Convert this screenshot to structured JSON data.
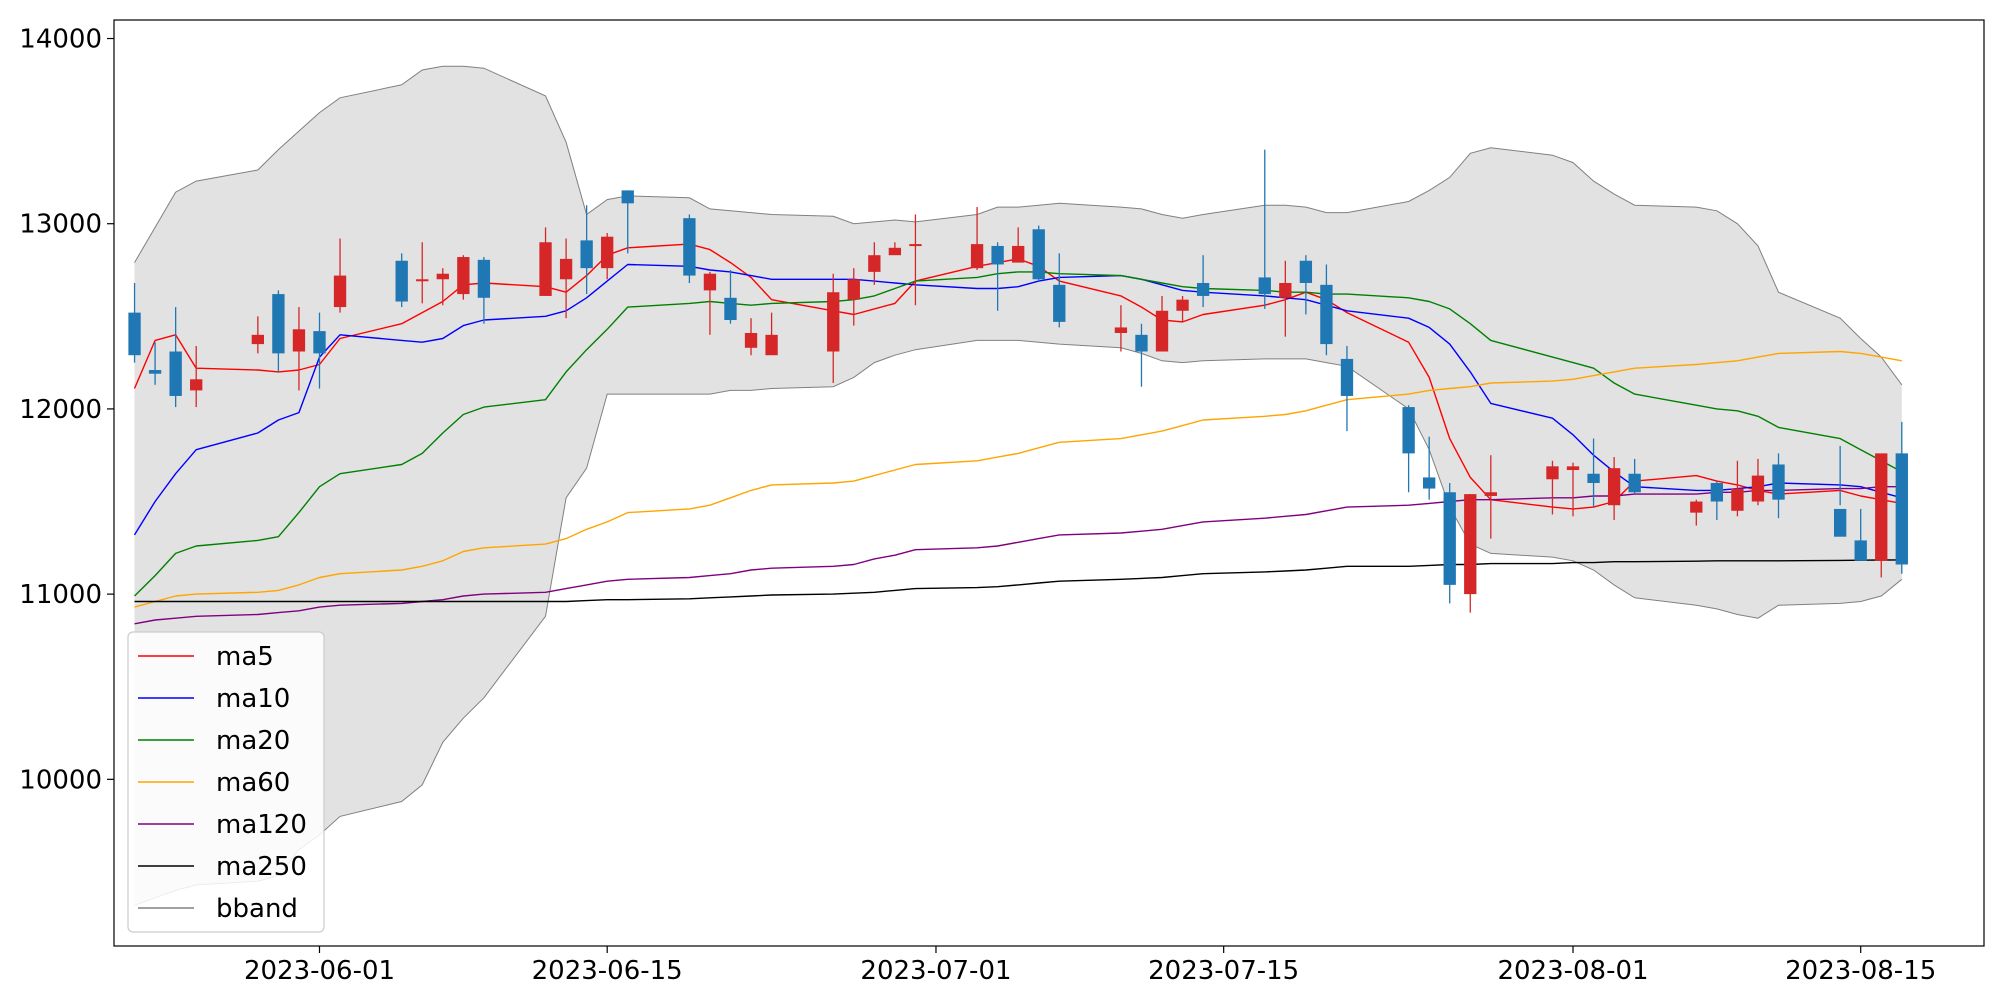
{
  "chart_data": {
    "type": "candlestick",
    "title": "",
    "xlabel": "",
    "ylabel": "",
    "x_range": [
      "2023-05-22",
      "2023-08-21"
    ],
    "ylim": [
      9100,
      14100
    ],
    "yticks": [
      10000,
      11000,
      12000,
      13000,
      14000
    ],
    "yticklabels": [
      "10000",
      "11000",
      "12000",
      "13000",
      "14000"
    ],
    "xticks": [
      "2023-06-01",
      "2023-06-15",
      "2023-07-01",
      "2023-07-15",
      "2023-08-01",
      "2023-08-15"
    ],
    "xticklabels": [
      "2023-06-01",
      "2023-06-15",
      "2023-07-01",
      "2023-07-15",
      "2023-08-01",
      "2023-08-15"
    ],
    "grid": false,
    "legend_position": "lower-left",
    "up_color": "#d62728",
    "down_color": "#1f77b4",
    "dates": [
      "2023-05-23",
      "2023-05-24",
      "2023-05-25",
      "2023-05-26",
      "2023-05-29",
      "2023-05-30",
      "2023-05-31",
      "2023-06-01",
      "2023-06-02",
      "2023-06-05",
      "2023-06-06",
      "2023-06-07",
      "2023-06-08",
      "2023-06-09",
      "2023-06-12",
      "2023-06-13",
      "2023-06-14",
      "2023-06-15",
      "2023-06-16",
      "2023-06-19",
      "2023-06-20",
      "2023-06-21",
      "2023-06-22",
      "2023-06-23",
      "2023-06-26",
      "2023-06-27",
      "2023-06-28",
      "2023-06-29",
      "2023-06-30",
      "2023-07-03",
      "2023-07-04",
      "2023-07-05",
      "2023-07-06",
      "2023-07-07",
      "2023-07-10",
      "2023-07-11",
      "2023-07-12",
      "2023-07-13",
      "2023-07-14",
      "2023-07-17",
      "2023-07-18",
      "2023-07-19",
      "2023-07-20",
      "2023-07-21",
      "2023-07-24",
      "2023-07-25",
      "2023-07-26",
      "2023-07-27",
      "2023-07-28",
      "2023-07-31",
      "2023-08-01",
      "2023-08-02",
      "2023-08-03",
      "2023-08-04",
      "2023-08-07",
      "2023-08-08",
      "2023-08-09",
      "2023-08-10",
      "2023-08-11",
      "2023-08-14",
      "2023-08-15",
      "2023-08-16",
      "2023-08-17"
    ],
    "candles": {
      "open": [
        12520,
        12210,
        12310,
        12100,
        12350,
        12620,
        12310,
        12420,
        12550,
        12800,
        12690,
        12700,
        12620,
        12805,
        12610,
        12700,
        12910,
        12760,
        13180,
        13030,
        12640,
        12600,
        12330,
        12290,
        12310,
        12590,
        12740,
        12830,
        12880,
        12760,
        12880,
        12790,
        12970,
        12670,
        12410,
        12400,
        12310,
        12530,
        12680,
        12710,
        12600,
        12800,
        12670,
        12270,
        12010,
        11630,
        11550,
        11000,
        11530,
        11620,
        11670,
        11650,
        11480,
        11650,
        11440,
        11600,
        11450,
        11500,
        11700,
        11460,
        11290,
        11180,
        11760
      ],
      "close": [
        12290,
        12190,
        12070,
        12160,
        12400,
        12300,
        12430,
        12300,
        12720,
        12580,
        12700,
        12730,
        12820,
        12600,
        12900,
        12810,
        12760,
        12930,
        13110,
        12720,
        12730,
        12480,
        12410,
        12400,
        12630,
        12700,
        12830,
        12870,
        12890,
        12890,
        12780,
        12880,
        12700,
        12470,
        12440,
        12310,
        12530,
        12590,
        12610,
        12620,
        12680,
        12680,
        12350,
        12070,
        11760,
        11570,
        11050,
        11540,
        11550,
        11690,
        11690,
        11600,
        11680,
        11550,
        11500,
        11500,
        11570,
        11640,
        11510,
        11310,
        11180,
        11760,
        11160
      ],
      "high": [
        12680,
        12360,
        12550,
        12340,
        12500,
        12640,
        12550,
        12520,
        12920,
        12840,
        12900,
        12760,
        12830,
        12820,
        12980,
        12920,
        13100,
        12950,
        13180,
        13050,
        12740,
        12750,
        12490,
        12520,
        12730,
        12760,
        12900,
        12900,
        13050,
        13090,
        12900,
        12980,
        12990,
        12840,
        12560,
        12460,
        12610,
        12610,
        12830,
        13400,
        12800,
        12830,
        12780,
        12340,
        12020,
        11850,
        11600,
        11540,
        11750,
        11720,
        11710,
        11840,
        11740,
        11730,
        11510,
        11610,
        11720,
        11730,
        11760,
        11800,
        11460,
        11380,
        11930
      ],
      "low": [
        12250,
        12130,
        12010,
        12010,
        12300,
        12200,
        12100,
        12110,
        12520,
        12550,
        12570,
        12560,
        12590,
        12460,
        12610,
        12490,
        12620,
        12700,
        12840,
        12680,
        12400,
        12460,
        12290,
        12300,
        12140,
        12450,
        12670,
        12860,
        12560,
        12750,
        12530,
        12820,
        12690,
        12440,
        12310,
        12120,
        12310,
        12470,
        12550,
        12540,
        12390,
        12510,
        12290,
        11880,
        11550,
        11510,
        10950,
        10900,
        11300,
        11430,
        11420,
        11470,
        11400,
        11540,
        11370,
        11400,
        11420,
        11480,
        11410,
        11480,
        11230,
        11090,
        11110
      ]
    },
    "series": [
      {
        "name": "ma5",
        "color": "#ff0000",
        "values": [
          12110,
          12370,
          12400,
          12220,
          12210,
          12200,
          12210,
          12240,
          12380,
          12460,
          12520,
          12580,
          12670,
          12680,
          12660,
          12630,
          12720,
          12830,
          12870,
          12890,
          12860,
          12790,
          12710,
          12590,
          12530,
          12510,
          12540,
          12570,
          12690,
          12770,
          12790,
          12810,
          12770,
          12690,
          12610,
          12550,
          12480,
          12470,
          12510,
          12560,
          12590,
          12630,
          12590,
          12520,
          12360,
          12170,
          11840,
          11630,
          11510,
          11470,
          11460,
          11470,
          11500,
          11610,
          11640,
          11610,
          11590,
          11560,
          11540,
          11560,
          11530,
          11510,
          11490
        ]
      },
      {
        "name": "ma10",
        "color": "#0000ff",
        "values": [
          11320,
          11500,
          11650,
          11780,
          11870,
          11940,
          11980,
          12280,
          12400,
          12370,
          12360,
          12380,
          12450,
          12480,
          12500,
          12530,
          12600,
          12690,
          12780,
          12770,
          12750,
          12740,
          12720,
          12700,
          12700,
          12700,
          12690,
          12680,
          12670,
          12650,
          12650,
          12660,
          12690,
          12710,
          12720,
          12700,
          12670,
          12640,
          12630,
          12610,
          12600,
          12590,
          12560,
          12530,
          12490,
          12440,
          12350,
          12200,
          12030,
          11950,
          11860,
          11750,
          11660,
          11580,
          11560,
          11560,
          11570,
          11580,
          11600,
          11590,
          11580,
          11550,
          11520
        ]
      },
      {
        "name": "ma20",
        "color": "#008000",
        "values": [
          10990,
          11100,
          11220,
          11260,
          11290,
          11310,
          11440,
          11580,
          11650,
          11700,
          11760,
          11870,
          11970,
          12010,
          12050,
          12200,
          12320,
          12430,
          12550,
          12570,
          12580,
          12570,
          12560,
          12570,
          12580,
          12590,
          12610,
          12650,
          12690,
          12710,
          12730,
          12740,
          12740,
          12730,
          12720,
          12700,
          12680,
          12660,
          12650,
          12640,
          12630,
          12630,
          12620,
          12620,
          12600,
          12580,
          12540,
          12460,
          12370,
          12280,
          12250,
          12220,
          12140,
          12080,
          12020,
          12000,
          11990,
          11960,
          11900,
          11840,
          11780,
          11720,
          11660
        ]
      },
      {
        "name": "ma60",
        "color": "#ffa500",
        "values": [
          10930,
          10960,
          10990,
          11000,
          11010,
          11020,
          11050,
          11090,
          11110,
          11130,
          11150,
          11180,
          11230,
          11250,
          11270,
          11300,
          11350,
          11390,
          11440,
          11460,
          11480,
          11520,
          11560,
          11590,
          11600,
          11610,
          11640,
          11670,
          11700,
          11720,
          11740,
          11760,
          11790,
          11820,
          11840,
          11860,
          11880,
          11910,
          11940,
          11960,
          11970,
          11990,
          12020,
          12050,
          12080,
          12100,
          12110,
          12120,
          12140,
          12150,
          12160,
          12180,
          12200,
          12220,
          12240,
          12250,
          12260,
          12280,
          12300,
          12310,
          12300,
          12280,
          12260
        ]
      },
      {
        "name": "ma120",
        "color": "#800080",
        "values": [
          10840,
          10860,
          10870,
          10880,
          10890,
          10900,
          10910,
          10930,
          10940,
          10950,
          10960,
          10970,
          10990,
          11000,
          11010,
          11030,
          11050,
          11070,
          11080,
          11090,
          11100,
          11110,
          11130,
          11140,
          11150,
          11160,
          11190,
          11210,
          11240,
          11250,
          11260,
          11280,
          11300,
          11320,
          11330,
          11340,
          11350,
          11370,
          11390,
          11410,
          11420,
          11430,
          11450,
          11470,
          11480,
          11490,
          11500,
          11510,
          11510,
          11520,
          11520,
          11530,
          11530,
          11540,
          11540,
          11550,
          11550,
          11560,
          11560,
          11570,
          11570,
          11580,
          11580
        ]
      },
      {
        "name": "ma250",
        "color": "#000000",
        "values": [
          10960,
          10960,
          10960,
          10960,
          10960,
          10960,
          10960,
          10960,
          10960,
          10960,
          10960,
          10960,
          10960,
          10960,
          10960,
          10960,
          10965,
          10970,
          10970,
          10975,
          10980,
          10985,
          10990,
          10995,
          11000,
          11005,
          11010,
          11020,
          11030,
          11035,
          11040,
          11050,
          11060,
          11070,
          11080,
          11085,
          11090,
          11100,
          11110,
          11120,
          11125,
          11130,
          11140,
          11150,
          11150,
          11155,
          11160,
          11160,
          11165,
          11165,
          11170,
          11170,
          11175,
          11175,
          11178,
          11180,
          11180,
          11180,
          11180,
          11182,
          11183,
          11184,
          11185
        ]
      }
    ],
    "bbands": {
      "name": "bband",
      "color": "#808080",
      "fill": "#e2e2e2",
      "upper": [
        12790,
        12980,
        13170,
        13230,
        13290,
        13400,
        13500,
        13600,
        13680,
        13750,
        13830,
        13850,
        13850,
        13840,
        13690,
        13440,
        13050,
        13130,
        13150,
        13140,
        13080,
        13070,
        13060,
        13050,
        13040,
        13000,
        13010,
        13020,
        13010,
        13050,
        13090,
        13090,
        13100,
        13110,
        13090,
        13080,
        13050,
        13030,
        13050,
        13100,
        13100,
        13090,
        13060,
        13060,
        13120,
        13180,
        13250,
        13380,
        13410,
        13370,
        13330,
        13230,
        13160,
        13100,
        13090,
        13070,
        13000,
        12880,
        12630,
        12490,
        12380,
        12280,
        12130
      ],
      "lower": [
        9320,
        9360,
        9400,
        9430,
        9450,
        9480,
        9620,
        9700,
        9800,
        9880,
        9970,
        10200,
        10330,
        10440,
        10880,
        11520,
        11680,
        12080,
        12080,
        12080,
        12080,
        12100,
        12100,
        12110,
        12120,
        12170,
        12250,
        12290,
        12320,
        12370,
        12370,
        12370,
        12360,
        12350,
        12330,
        12300,
        12260,
        12250,
        12260,
        12270,
        12270,
        12270,
        12250,
        12230,
        12000,
        11780,
        11470,
        11270,
        11220,
        11200,
        11180,
        11130,
        11050,
        10980,
        10940,
        10920,
        10890,
        10870,
        10940,
        10950,
        10960,
        10990,
        11080
      ]
    }
  },
  "legend": {
    "items": [
      {
        "label": "ma5",
        "color": "#ff0000"
      },
      {
        "label": "ma10",
        "color": "#0000ff"
      },
      {
        "label": "ma20",
        "color": "#008000"
      },
      {
        "label": "ma60",
        "color": "#ffa500"
      },
      {
        "label": "ma120",
        "color": "#800080"
      },
      {
        "label": "ma250",
        "color": "#000000"
      },
      {
        "label": "bband",
        "color": "#808080"
      }
    ]
  }
}
